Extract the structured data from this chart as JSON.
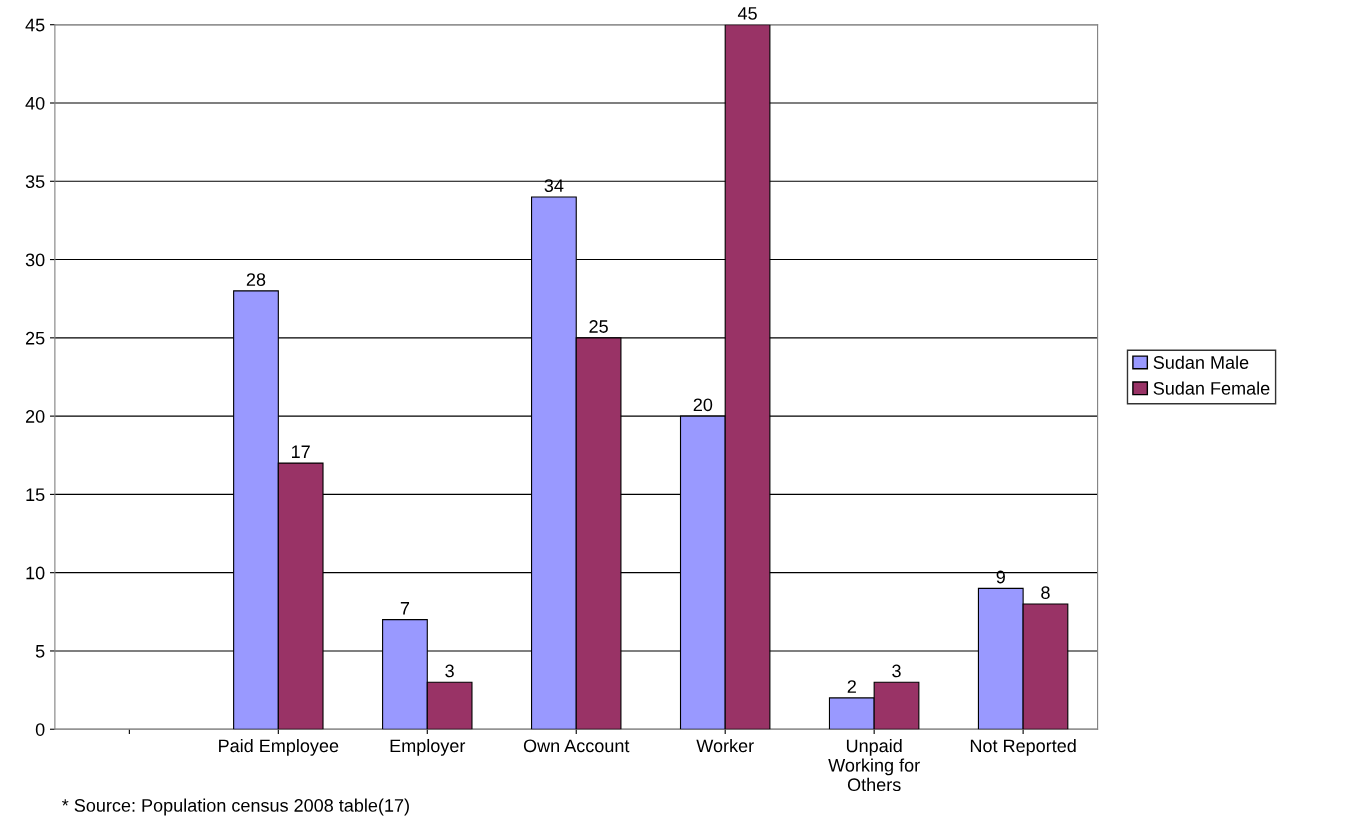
{
  "chart_data": {
    "type": "bar",
    "categories": [
      null,
      "Paid Employee",
      "Employer",
      "Own Account",
      "Worker",
      "Unpaid\nWorking for\nOthers",
      "Not Reported"
    ],
    "series": [
      {
        "name": "Sudan Male",
        "color": "#9999ff",
        "values": [
          null,
          28,
          7,
          34,
          20,
          2,
          9
        ]
      },
      {
        "name": "Sudan Female",
        "color": "#993366",
        "values": [
          null,
          17,
          3,
          25,
          45,
          3,
          8
        ]
      }
    ],
    "ylim": [
      0,
      45
    ],
    "yticks": [
      0,
      5,
      10,
      15,
      20,
      25,
      30,
      35,
      40,
      45
    ],
    "grid": "y",
    "legend": "right",
    "data_labels": true,
    "annotations": [
      "* Source: Population census 2008 table(17)"
    ]
  }
}
